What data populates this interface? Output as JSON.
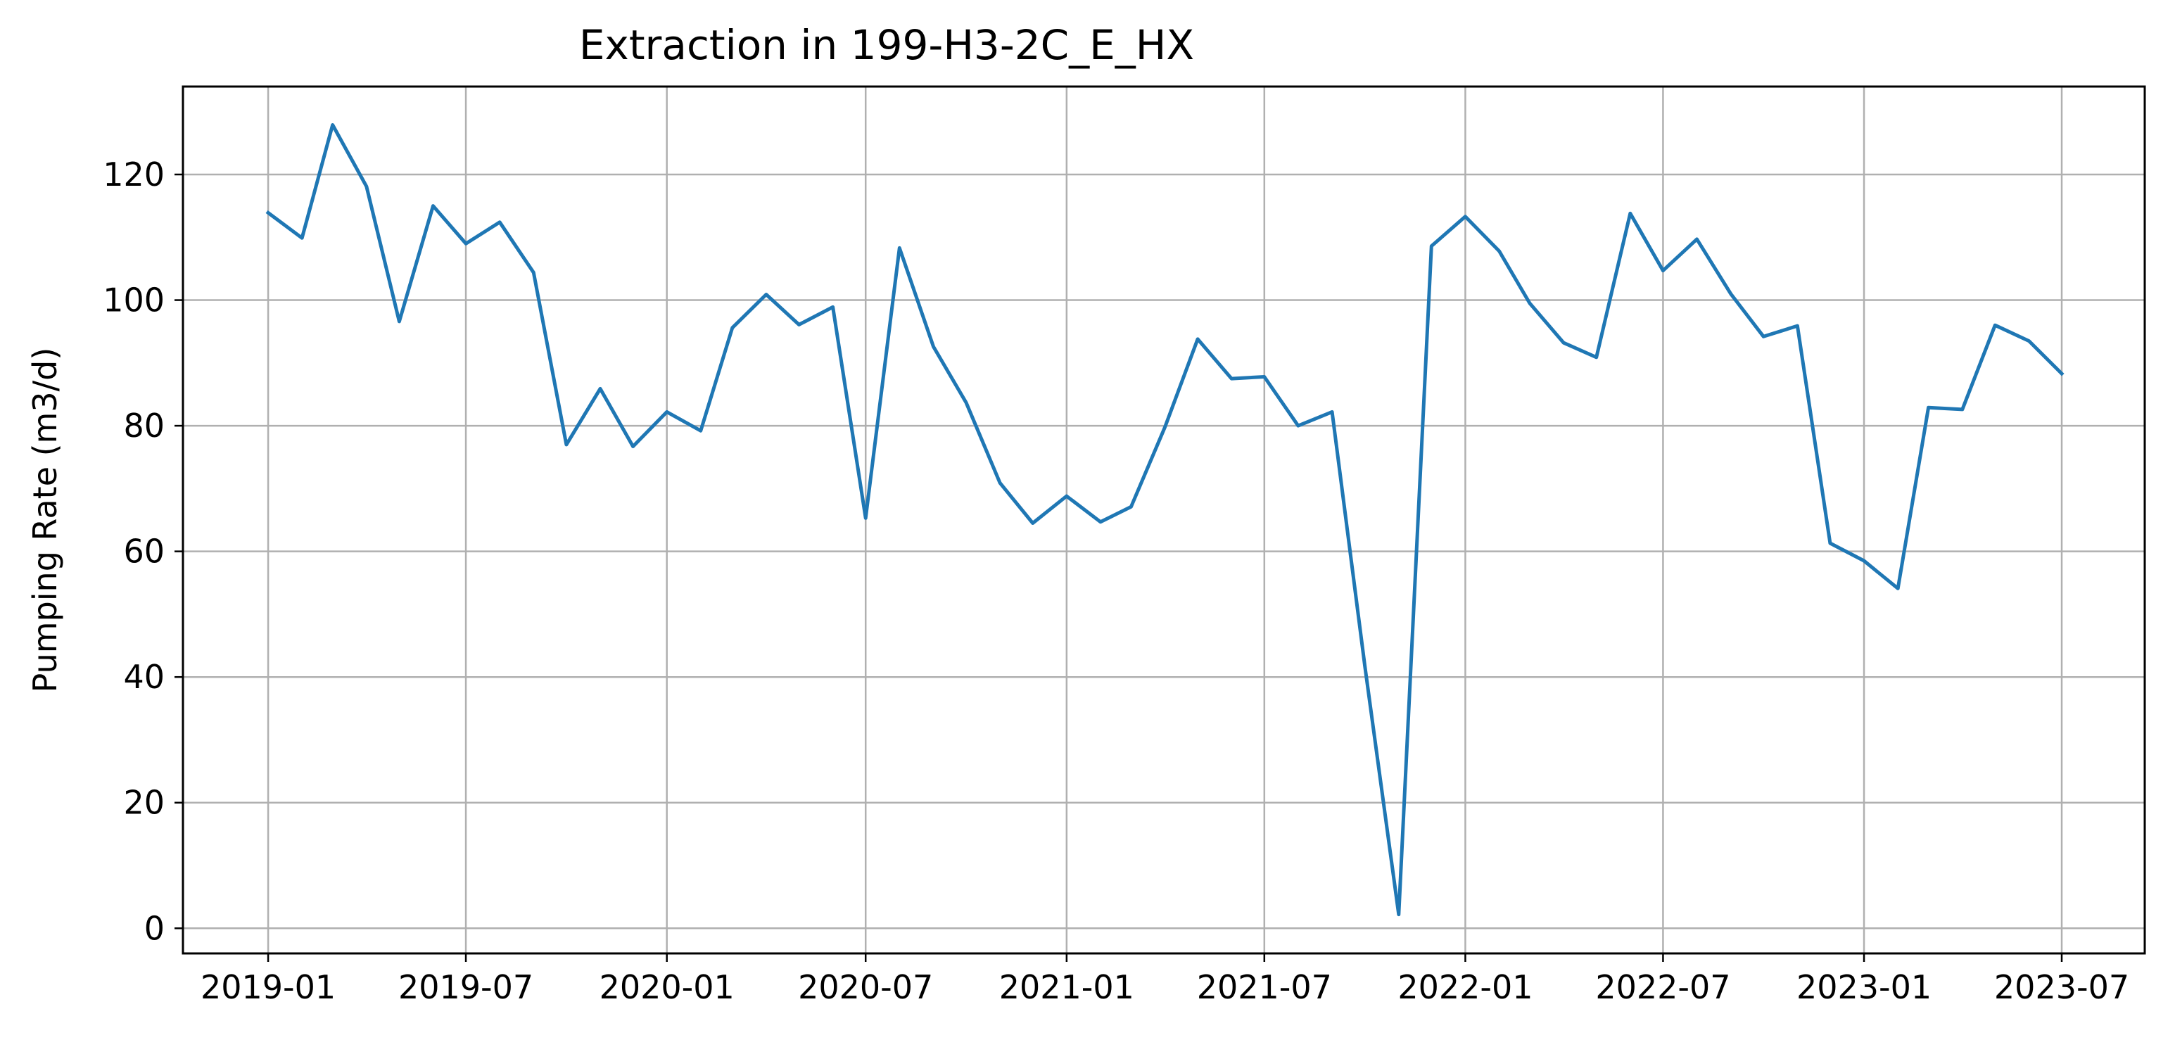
{
  "chart_data": {
    "type": "line",
    "title": "Extraction in 199-H3-2C_E_HX",
    "xlabel": "",
    "ylabel": "Pumping Rate (m3/d)",
    "x_tick_labels": [
      "2019-01",
      "2019-07",
      "2020-01",
      "2020-07",
      "2021-01",
      "2021-07",
      "2022-01",
      "2022-07",
      "2023-01",
      "2023-07"
    ],
    "y_tick_labels": [
      "0",
      "20",
      "40",
      "60",
      "80",
      "100",
      "120"
    ],
    "xlim": [
      "2018-10-15",
      "2023-09-15"
    ],
    "ylim": [
      -4,
      134
    ],
    "grid": true,
    "line_color": "#1f77b4",
    "series": [
      {
        "name": "",
        "x": [
          "2019-01",
          "2019-02",
          "2019-03",
          "2019-04",
          "2019-05",
          "2019-06",
          "2019-07",
          "2019-08",
          "2019-09",
          "2019-10",
          "2019-11",
          "2019-12",
          "2020-01",
          "2020-02",
          "2020-03",
          "2020-04",
          "2020-05",
          "2020-06",
          "2020-07",
          "2020-08",
          "2020-09",
          "2020-10",
          "2020-11",
          "2020-12",
          "2021-01",
          "2021-02",
          "2021-03",
          "2021-04",
          "2021-05",
          "2021-06",
          "2021-07",
          "2021-08",
          "2021-09",
          "2021-10",
          "2021-11",
          "2021-12",
          "2022-01",
          "2022-02",
          "2022-03",
          "2022-04",
          "2022-05",
          "2022-06",
          "2022-07",
          "2022-08",
          "2022-09",
          "2022-10",
          "2022-11",
          "2022-12",
          "2023-01",
          "2023-02",
          "2023-03",
          "2023-04",
          "2023-05",
          "2023-06",
          "2023-07"
        ],
        "values": [
          113.9,
          109.9,
          127.9,
          118.1,
          96.6,
          115.0,
          109.0,
          112.4,
          104.4,
          77.0,
          85.9,
          76.7,
          82.2,
          79.2,
          95.6,
          100.9,
          96.1,
          98.9,
          65.3,
          108.3,
          92.6,
          83.7,
          70.9,
          64.5,
          68.8,
          64.7,
          67.1,
          79.8,
          93.8,
          87.5,
          87.8,
          80.0,
          82.2,
          41.8,
          2.2,
          108.6,
          113.3,
          107.8,
          99.5,
          93.2,
          90.9,
          113.8,
          104.7,
          109.7,
          101.0,
          94.2,
          95.9,
          61.3,
          58.5,
          54.1,
          82.9,
          82.6,
          96.0,
          93.5,
          88.3
        ]
      }
    ]
  }
}
